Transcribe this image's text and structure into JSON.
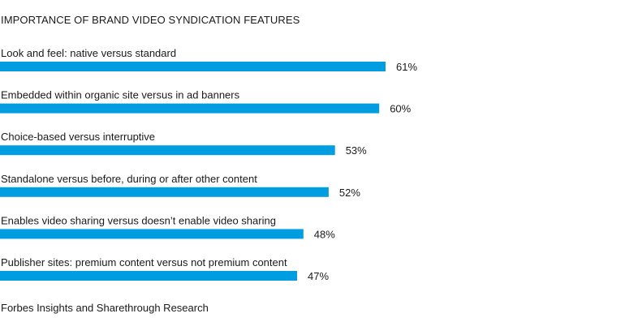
{
  "chart_data": {
    "type": "bar",
    "orientation": "horizontal",
    "title": "IMPORTANCE OF BRAND VIDEO SYNDICATION FEATURES",
    "source": "Forbes Insights and Sharethrough Research",
    "categories": [
      "Look and feel: native versus standard",
      "Embedded within organic site versus in ad banners",
      "Choice-based versus interruptive",
      "Standalone versus before, during or after other content",
      "Enables video sharing versus doesn’t enable video sharing",
      "Publisher sites: premium content versus not premium content"
    ],
    "values": [
      61,
      60,
      53,
      52,
      48,
      47
    ],
    "value_labels": [
      "61%",
      "60%",
      "53%",
      "52%",
      "48%",
      "47%"
    ],
    "unit": "%",
    "xlim": [
      0,
      100
    ],
    "bar_color": "#009ee0",
    "grid": false,
    "legend": "none"
  }
}
